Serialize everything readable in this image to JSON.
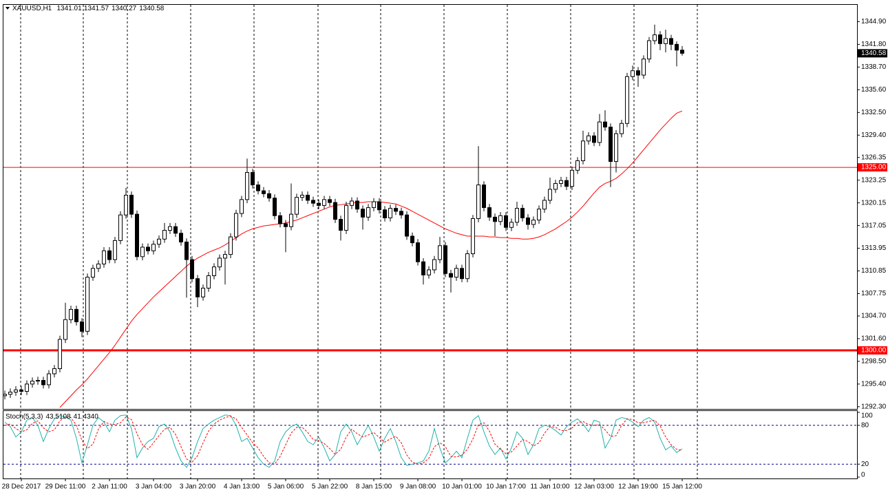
{
  "chart_data": [
    {
      "type": "candlestick",
      "symbol": "XAUUSD,H1",
      "quote": [
        1341.01,
        1341.57,
        1340.27,
        1340.58
      ],
      "categories": [
        null,
        null,
        null,
        "28 Dec 2017",
        null,
        null,
        null,
        null,
        null,
        null,
        null,
        "29 Dec 11:00",
        null,
        null,
        null,
        null,
        null,
        null,
        null,
        "2 Jan 11:00",
        null,
        null,
        null,
        null,
        null,
        null,
        null,
        "3 Jan 04:00",
        null,
        null,
        null,
        null,
        null,
        null,
        null,
        "3 Jan 20:00",
        null,
        null,
        null,
        null,
        null,
        null,
        null,
        "4 Jan 13:00",
        null,
        null,
        null,
        null,
        null,
        null,
        null,
        "5 Jan 06:00",
        null,
        null,
        null,
        null,
        null,
        null,
        null,
        "5 Jan 22:00",
        null,
        null,
        null,
        null,
        null,
        null,
        null,
        "8 Jan 15:00",
        null,
        null,
        null,
        null,
        null,
        null,
        null,
        "9 Jan 08:00",
        null,
        null,
        null,
        null,
        null,
        null,
        null,
        "10 Jan 01:00",
        null,
        null,
        null,
        null,
        null,
        null,
        null,
        "10 Jan 17:00",
        null,
        null,
        null,
        null,
        null,
        null,
        null,
        "11 Jan 10:00",
        null,
        null,
        null,
        null,
        null,
        null,
        null,
        "12 Jan 03:00",
        null,
        null,
        null,
        null,
        null,
        null,
        null,
        "12 Jan 19:00",
        null,
        null,
        null,
        null,
        null,
        null,
        null,
        "15 Jan 12:00"
      ],
      "open": [
        1293.8,
        1294.0,
        1294.3,
        1294.6,
        1294.4,
        1295.4,
        1295.8,
        1295.9,
        1295.3,
        1296.8,
        1297.5,
        1301.5,
        1304.2,
        1305.6,
        1303.9,
        1302.6,
        1310.0,
        1311.2,
        1311.8,
        1313.6,
        1312.4,
        1315.0,
        1318.5,
        1321.2,
        1318.6,
        1312.8,
        1314.1,
        1313.6,
        1314.5,
        1315.2,
        1316.4,
        1316.9,
        1316.0,
        1314.8,
        1312.4,
        1309.8,
        1307.3,
        1308.5,
        1310.2,
        1311.4,
        1312.6,
        1313.1,
        1315.5,
        1318.7,
        1320.6,
        1324.3,
        1322.6,
        1321.8,
        1321.4,
        1320.8,
        1318.4,
        1317.3,
        1316.9,
        1318.6,
        1320.9,
        1321.2,
        1320.5,
        1320.1,
        1319.8,
        1320.6,
        1320.2,
        1317.9,
        1316.4,
        1319.8,
        1320.4,
        1319.3,
        1318.2,
        1319.5,
        1320.3,
        1319.2,
        1318.1,
        1319.4,
        1319.0,
        1318.5,
        1315.6,
        1314.7,
        1312.1,
        1310.3,
        1311.0,
        1312.4,
        1314.3,
        1310.5,
        1310.0,
        1311.2,
        1309.8,
        1313.2,
        1318.0,
        1322.6,
        1319.5,
        1318.2,
        1317.6,
        1318.4,
        1316.8,
        1317.5,
        1319.4,
        1318.1,
        1317.2,
        1317.8,
        1319.3,
        1320.5,
        1322.0,
        1322.8,
        1323.2,
        1322.4,
        1324.6,
        1325.9,
        1328.6,
        1329.3,
        1328.4,
        1331.2,
        1330.5,
        1325.8,
        1329.6,
        1331.0,
        1337.4,
        1338.2,
        1337.6,
        1339.8,
        1342.3,
        1343.1,
        1341.9,
        1342.6,
        1341.8,
        1341.01
      ],
      "high": [
        1294.5,
        1294.8,
        1295.1,
        1295.1,
        1295.9,
        1296.3,
        1296.4,
        1296.4,
        1297.3,
        1298.0,
        1302.0,
        1306.5,
        1306.1,
        1306.1,
        1304.4,
        1310.5,
        1311.7,
        1312.3,
        1314.1,
        1314.1,
        1315.5,
        1319.0,
        1322.2,
        1321.7,
        1319.1,
        1314.6,
        1314.6,
        1315.0,
        1315.7,
        1317.4,
        1317.4,
        1317.4,
        1316.5,
        1315.3,
        1312.9,
        1310.3,
        1309.0,
        1310.7,
        1311.9,
        1313.1,
        1313.6,
        1316.0,
        1319.2,
        1321.1,
        1326.2,
        1324.8,
        1323.1,
        1322.3,
        1321.9,
        1321.3,
        1318.9,
        1317.8,
        1322.8,
        1321.4,
        1321.7,
        1321.7,
        1321.0,
        1320.6,
        1321.1,
        1321.1,
        1320.7,
        1318.4,
        1320.3,
        1320.9,
        1320.9,
        1319.8,
        1320.0,
        1320.8,
        1320.8,
        1319.7,
        1319.9,
        1319.9,
        1319.5,
        1319.0,
        1316.1,
        1315.2,
        1312.6,
        1311.5,
        1312.9,
        1315.5,
        1314.8,
        1311.0,
        1311.7,
        1311.7,
        1313.7,
        1318.5,
        1327.9,
        1323.1,
        1320.0,
        1318.7,
        1318.9,
        1318.9,
        1318.0,
        1320.3,
        1319.9,
        1318.6,
        1318.3,
        1319.8,
        1321.0,
        1323.6,
        1323.3,
        1323.7,
        1323.7,
        1325.1,
        1326.4,
        1330.0,
        1329.8,
        1329.8,
        1332.3,
        1332.8,
        1331.0,
        1330.1,
        1331.5,
        1337.9,
        1338.9,
        1338.7,
        1340.3,
        1342.8,
        1344.5,
        1343.6,
        1343.8,
        1343.1,
        1342.2,
        1341.57
      ],
      "low": [
        1293.3,
        1293.5,
        1293.8,
        1293.9,
        1293.9,
        1294.9,
        1295.3,
        1294.8,
        1294.8,
        1296.3,
        1297.0,
        1301.0,
        1303.7,
        1303.4,
        1301.8,
        1302.1,
        1309.5,
        1310.7,
        1311.3,
        1311.9,
        1311.9,
        1314.5,
        1318.0,
        1318.1,
        1312.3,
        1312.3,
        1313.1,
        1313.1,
        1314.0,
        1314.7,
        1315.9,
        1315.5,
        1314.3,
        1307.2,
        1309.3,
        1305.9,
        1306.8,
        1308.0,
        1309.7,
        1310.9,
        1309.0,
        1312.6,
        1315.0,
        1318.2,
        1320.1,
        1322.1,
        1321.3,
        1320.9,
        1320.3,
        1317.9,
        1316.8,
        1313.4,
        1316.4,
        1318.1,
        1320.4,
        1320.0,
        1319.6,
        1319.3,
        1319.3,
        1319.7,
        1317.4,
        1315.0,
        1315.9,
        1319.3,
        1318.8,
        1316.5,
        1317.7,
        1319.0,
        1318.7,
        1317.6,
        1317.6,
        1318.5,
        1318.0,
        1315.1,
        1314.2,
        1311.6,
        1309.0,
        1309.8,
        1310.5,
        1311.9,
        1310.0,
        1307.9,
        1309.5,
        1309.3,
        1309.3,
        1312.7,
        1317.5,
        1319.0,
        1317.7,
        1315.6,
        1317.1,
        1316.3,
        1316.3,
        1317.0,
        1317.6,
        1316.5,
        1316.7,
        1317.3,
        1318.8,
        1320.0,
        1321.5,
        1322.3,
        1321.9,
        1321.9,
        1324.1,
        1325.4,
        1328.1,
        1327.9,
        1327.9,
        1330.0,
        1322.3,
        1324.3,
        1329.1,
        1330.5,
        1336.9,
        1336.0,
        1337.1,
        1339.3,
        1341.8,
        1341.0,
        1340.7,
        1341.0,
        1338.8,
        1340.27
      ],
      "close": [
        1294.0,
        1294.3,
        1294.6,
        1294.4,
        1295.4,
        1295.8,
        1295.9,
        1295.3,
        1296.8,
        1297.5,
        1301.5,
        1304.2,
        1305.6,
        1303.9,
        1302.6,
        1310.0,
        1311.2,
        1311.8,
        1313.6,
        1312.4,
        1315.0,
        1318.5,
        1321.2,
        1318.6,
        1312.8,
        1314.1,
        1313.6,
        1314.5,
        1315.2,
        1316.4,
        1316.9,
        1316.0,
        1314.8,
        1312.4,
        1309.8,
        1307.3,
        1308.5,
        1310.2,
        1311.4,
        1312.6,
        1313.1,
        1315.5,
        1318.7,
        1320.6,
        1324.3,
        1322.6,
        1321.8,
        1321.4,
        1320.8,
        1318.4,
        1317.3,
        1316.9,
        1318.6,
        1320.9,
        1321.2,
        1320.5,
        1320.1,
        1319.8,
        1320.6,
        1320.2,
        1317.9,
        1316.4,
        1319.8,
        1320.4,
        1319.3,
        1318.2,
        1319.5,
        1320.3,
        1319.2,
        1318.1,
        1319.4,
        1319.0,
        1318.5,
        1315.6,
        1314.7,
        1312.1,
        1310.3,
        1311.0,
        1312.4,
        1314.3,
        1310.5,
        1310.0,
        1311.2,
        1309.8,
        1313.2,
        1318.0,
        1322.6,
        1319.5,
        1318.2,
        1317.6,
        1318.4,
        1316.8,
        1317.5,
        1319.4,
        1318.1,
        1317.2,
        1317.8,
        1319.3,
        1320.5,
        1322.0,
        1322.8,
        1323.2,
        1322.4,
        1324.6,
        1325.9,
        1328.6,
        1329.3,
        1328.4,
        1331.2,
        1330.5,
        1325.8,
        1329.6,
        1331.0,
        1337.4,
        1338.2,
        1337.6,
        1339.8,
        1342.3,
        1343.1,
        1341.9,
        1342.6,
        1341.8,
        1341.01,
        1340.58
      ],
      "up_color": "#ffffff",
      "down_color": "#000000",
      "line_color": "#000000",
      "ylim": [
        1292.0,
        1347.2
      ],
      "yticks": [
        {
          "value": 1344.9,
          "label": "1344.90"
        },
        {
          "value": 1341.8,
          "label": "1341.80"
        },
        {
          "value": 1338.7,
          "label": "1338.70"
        },
        {
          "value": 1335.6,
          "label": "1335.60"
        },
        {
          "value": 1332.5,
          "label": "1332.50"
        },
        {
          "value": 1329.4,
          "label": "1329.40"
        },
        1326.35,
        1323.25,
        {
          "value": 1320.15,
          "label": "1320.15"
        },
        1317.05,
        1313.95,
        1310.85,
        1307.75,
        {
          "value": 1304.7,
          "label": "1304.70"
        },
        {
          "value": 1301.6,
          "label": "1301.60"
        },
        {
          "value": 1298.5,
          "label": "1298.50"
        },
        {
          "value": 1295.4,
          "label": "1295.40"
        },
        {
          "value": 1292.3,
          "label": "1292.30"
        }
      ],
      "levels": [
        {
          "value": 1325,
          "label": "1325.00",
          "color": "#ff0000"
        },
        {
          "value": 1300,
          "label": "1300.00",
          "color": "#ff0000"
        }
      ],
      "current_price": 1340.58,
      "ma": {
        "color": "#ff0000",
        "values": [
          null,
          null,
          null,
          null,
          null,
          null,
          null,
          null,
          null,
          null,
          1292.2,
          1293.0,
          1293.8,
          1294.6,
          1295.3,
          1296.1,
          1297.0,
          1297.9,
          1298.8,
          1299.7,
          1300.7,
          1301.8,
          1302.9,
          1304.0,
          1304.9,
          1305.7,
          1306.5,
          1307.3,
          1308.0,
          1308.7,
          1309.4,
          1310.1,
          1310.8,
          1311.5,
          1312.1,
          1312.6,
          1313.0,
          1313.4,
          1313.7,
          1314.0,
          1314.4,
          1314.9,
          1315.4,
          1315.9,
          1316.3,
          1316.6,
          1316.8,
          1317.0,
          1317.1,
          1317.2,
          1317.3,
          1317.4,
          1317.6,
          1317.8,
          1318.1,
          1318.4,
          1318.7,
          1319.0,
          1319.3,
          1319.6,
          1319.8,
          1319.9,
          1320.0,
          1320.1,
          1320.2,
          1320.2,
          1320.3,
          1320.3,
          1320.3,
          1320.2,
          1320.1,
          1320.0,
          1319.7,
          1319.4,
          1319.0,
          1318.6,
          1318.2,
          1317.8,
          1317.4,
          1317.0,
          1316.6,
          1316.3,
          1316.0,
          1315.8,
          1315.6,
          1315.6,
          1315.6,
          1315.6,
          1315.5,
          1315.5,
          1315.4,
          1315.4,
          1315.3,
          1315.3,
          1315.2,
          1315.2,
          1315.3,
          1315.5,
          1315.8,
          1316.2,
          1316.6,
          1317.1,
          1317.6,
          1318.2,
          1318.9,
          1319.7,
          1320.6,
          1321.5,
          1322.3,
          1322.8,
          1323.1,
          1323.5,
          1324.1,
          1324.8,
          1325.6,
          1326.5,
          1327.4,
          1328.3,
          1329.2,
          1330.1,
          1330.9,
          1331.7,
          1332.4,
          1332.7
        ]
      }
    },
    {
      "type": "line",
      "title": "Stoch(5,3,3)",
      "readings": [
        43.5108,
        {
          "value": 41.434,
          "label": "41.4340"
        }
      ],
      "ylim": [
        0,
        100
      ],
      "yticks": [
        100,
        80,
        20,
        0
      ],
      "series": [
        {
          "color": "#20b2aa",
          "dash": false,
          "values": [
            85,
            78,
            62,
            70,
            88,
            92,
            80,
            55,
            75,
            90,
            95,
            93,
            88,
            60,
            22,
            50,
            80,
            92,
            85,
            70,
            88,
            95,
            96,
            75,
            30,
            45,
            55,
            60,
            78,
            82,
            70,
            45,
            25,
            15,
            30,
            55,
            75,
            82,
            88,
            92,
            96,
            95,
            80,
            55,
            60,
            45,
            30,
            20,
            15,
            25,
            55,
            70,
            78,
            82,
            70,
            55,
            50,
            62,
            45,
            25,
            35,
            70,
            82,
            70,
            50,
            65,
            80,
            62,
            40,
            60,
            75,
            55,
            30,
            18,
            20,
            22,
            25,
            40,
            75,
            45,
            22,
            30,
            40,
            30,
            60,
            88,
            95,
            70,
            48,
            35,
            45,
            28,
            45,
            70,
            60,
            35,
            50,
            75,
            80,
            78,
            72,
            65,
            78,
            85,
            90,
            82,
            70,
            88,
            85,
            45,
            60,
            88,
            92,
            90,
            85,
            78,
            88,
            92,
            85,
            60,
            42,
            48,
            38,
            43.5108
          ]
        },
        {
          "color": "#ff0000",
          "dash": true,
          "values": [
            80,
            82,
            75,
            70,
            73,
            83,
            87,
            76,
            70,
            73,
            87,
            93,
            92,
            80,
            57,
            44,
            51,
            74,
            86,
            82,
            81,
            84,
            93,
            89,
            67,
            50,
            43,
            53,
            64,
            74,
            77,
            66,
            47,
            28,
            23,
            33,
            53,
            71,
            82,
            88,
            92,
            94,
            90,
            77,
            65,
            53,
            45,
            32,
            22,
            20,
            32,
            50,
            68,
            77,
            77,
            69,
            58,
            56,
            52,
            44,
            35,
            43,
            62,
            74,
            67,
            62,
            65,
            69,
            61,
            54,
            59,
            63,
            53,
            34,
            23,
            20,
            22,
            29,
            47,
            53,
            47,
            32,
            31,
            34,
            43,
            59,
            81,
            84,
            71,
            51,
            43,
            36,
            39,
            48,
            58,
            55,
            48,
            53,
            68,
            78,
            77,
            72,
            72,
            76,
            84,
            86,
            81,
            80,
            81,
            73,
            63,
            64,
            80,
            90,
            89,
            84,
            84,
            86,
            88,
            79,
            62,
            50,
            43,
            41.434
          ]
        }
      ]
    }
  ]
}
